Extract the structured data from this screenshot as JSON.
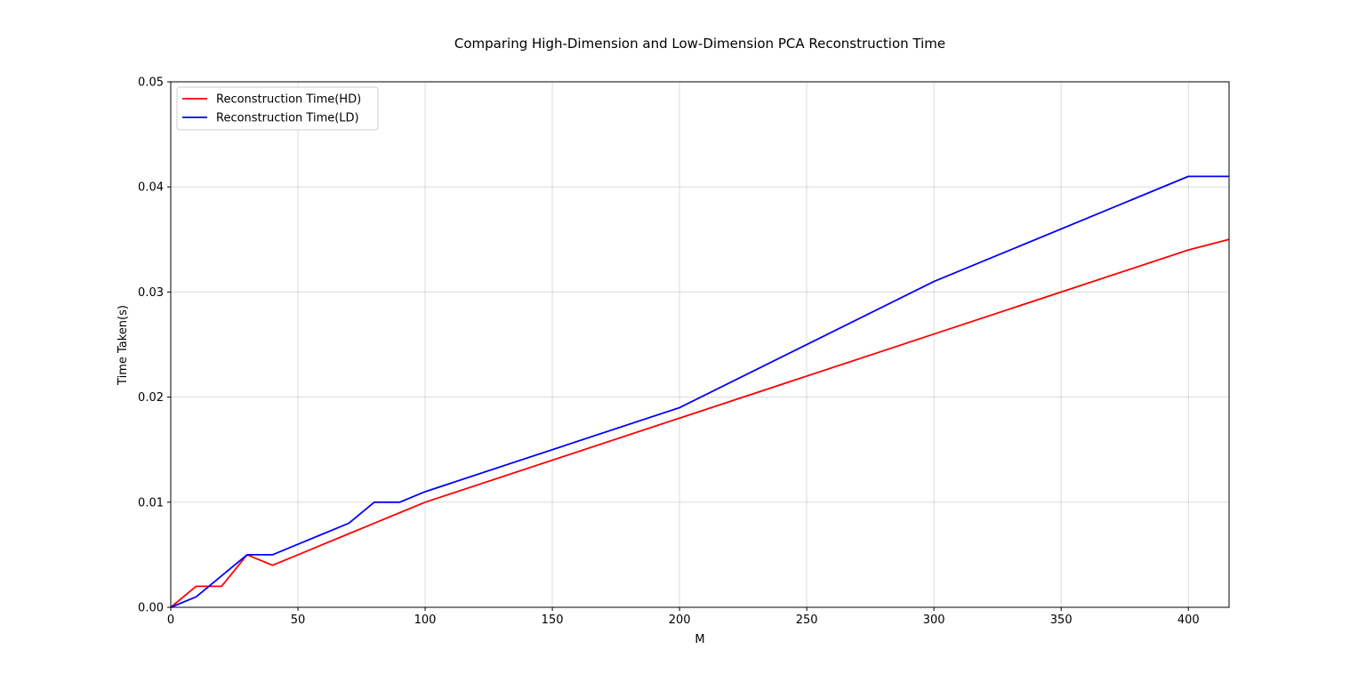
{
  "chart_data": {
    "type": "line",
    "title": "Comparing High-Dimension and Low-Dimension PCA Reconstruction Time",
    "xlabel": "M",
    "ylabel": "Time Taken(s)",
    "xlim": [
      0,
      416
    ],
    "ylim": [
      0,
      0.05
    ],
    "grid": true,
    "legend_position": "top-left",
    "x_ticks": [
      0,
      50,
      100,
      150,
      200,
      250,
      300,
      350,
      400
    ],
    "y_ticks": [
      0.0,
      0.01,
      0.02,
      0.03,
      0.04,
      0.05
    ],
    "x_tick_labels": [
      "0",
      "50",
      "100",
      "150",
      "200",
      "250",
      "300",
      "350",
      "400"
    ],
    "y_tick_labels": [
      "0.00",
      "0.01",
      "0.02",
      "0.03",
      "0.04",
      "0.05"
    ],
    "series": [
      {
        "name": "Reconstruction Time(HD)",
        "color": "#ff0000",
        "x": [
          0,
          10,
          20,
          30,
          40,
          50,
          60,
          70,
          80,
          90,
          100,
          200,
          300,
          400,
          416
        ],
        "y": [
          0.0,
          0.002,
          0.002,
          0.005,
          0.004,
          0.005,
          0.006,
          0.007,
          0.008,
          0.009,
          0.01,
          0.018,
          0.026,
          0.034,
          0.035
        ]
      },
      {
        "name": "Reconstruction Time(LD)",
        "color": "#0000ff",
        "x": [
          0,
          10,
          20,
          30,
          40,
          50,
          60,
          70,
          80,
          90,
          100,
          200,
          300,
          400,
          416
        ],
        "y": [
          0.0,
          0.001,
          0.003,
          0.005,
          0.005,
          0.006,
          0.007,
          0.008,
          0.01,
          0.01,
          0.011,
          0.019,
          0.031,
          0.041,
          0.041
        ]
      }
    ]
  }
}
